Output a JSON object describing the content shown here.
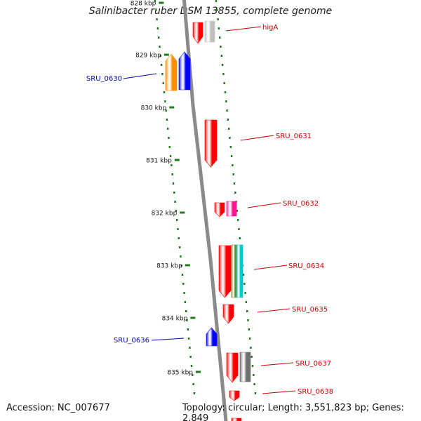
{
  "title": "Salinibacter ruber DSM 13855, complete genome",
  "footer": {
    "accession": "Accession: NC_007677",
    "summary": "Topology: circular; Length: 3,551,823 bp; Genes: 2,849"
  },
  "scale": {
    "top_label": "828 kbp",
    "labels": [
      "829 kbp",
      "830 kbp",
      "831 kbp",
      "832 kbp",
      "833 kbp",
      "834 kbp",
      "835 kbp"
    ]
  },
  "colors": {
    "backbone": "#8a8a8a",
    "tick": "#1f7a1f",
    "forward_label": "#cc0000",
    "reverse_label": "#0000aa"
  },
  "genes": [
    {
      "label": "higA",
      "strand": "forward",
      "color": "#ff0000"
    },
    {
      "label": "",
      "strand": "forward",
      "color": "#c0c0c0"
    },
    {
      "label": "SRU_0630",
      "strand": "reverse",
      "color": "#ff8c00"
    },
    {
      "label": "",
      "strand": "reverse",
      "color": "#0000ff"
    },
    {
      "label": "SRU_0631",
      "strand": "forward",
      "color": "#ff0000"
    },
    {
      "label": "SRU_0632",
      "strand": "forward",
      "color": "#ff0000"
    },
    {
      "label": "",
      "strand": "forward",
      "color": "#ff1493"
    },
    {
      "label": "SRU_0634",
      "strand": "forward",
      "color": "#ff0000"
    },
    {
      "label": "",
      "strand": "forward",
      "color": "#6b8e23"
    },
    {
      "label": "",
      "strand": "forward",
      "color": "#00c8c8"
    },
    {
      "label": "SRU_0635",
      "strand": "forward",
      "color": "#ff0000"
    },
    {
      "label": "SRU_0636",
      "strand": "reverse",
      "color": "#0000ff"
    },
    {
      "label": "SRU_0637",
      "strand": "forward",
      "color": "#ff0000"
    },
    {
      "label": "",
      "strand": "forward",
      "color": "#707070"
    },
    {
      "label": "SRU_0638",
      "strand": "forward",
      "color": "#ff0000"
    },
    {
      "label": "",
      "strand": "forward",
      "color": "#ff0000"
    }
  ]
}
